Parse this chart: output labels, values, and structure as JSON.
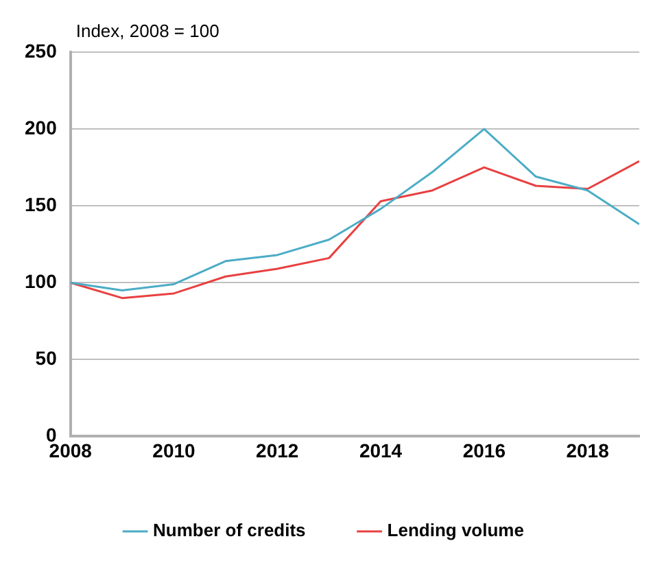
{
  "chart_data": {
    "type": "line",
    "ylabel": "Index, 2008 = 100",
    "x": [
      2008,
      2009,
      2010,
      2011,
      2012,
      2013,
      2014,
      2015,
      2016,
      2017,
      2018,
      2019
    ],
    "series": [
      {
        "name": "Number of credits",
        "color": "#4bacc6",
        "values": [
          100,
          95,
          99,
          114,
          118,
          128,
          148,
          172,
          200,
          169,
          160,
          138
        ]
      },
      {
        "name": "Lending volume",
        "color": "#e84040",
        "values": [
          100,
          90,
          93,
          104,
          109,
          116,
          153,
          160,
          175,
          163,
          161,
          179
        ]
      }
    ],
    "xlim": [
      2008,
      2019
    ],
    "xticks": [
      2008,
      2010,
      2012,
      2014,
      2016,
      2018
    ],
    "ylim": [
      0,
      250
    ],
    "yticks": [
      0,
      50,
      100,
      150,
      200,
      250
    ],
    "grid": "y",
    "legend": "bottom",
    "marker": "none",
    "line_style": "solid"
  }
}
